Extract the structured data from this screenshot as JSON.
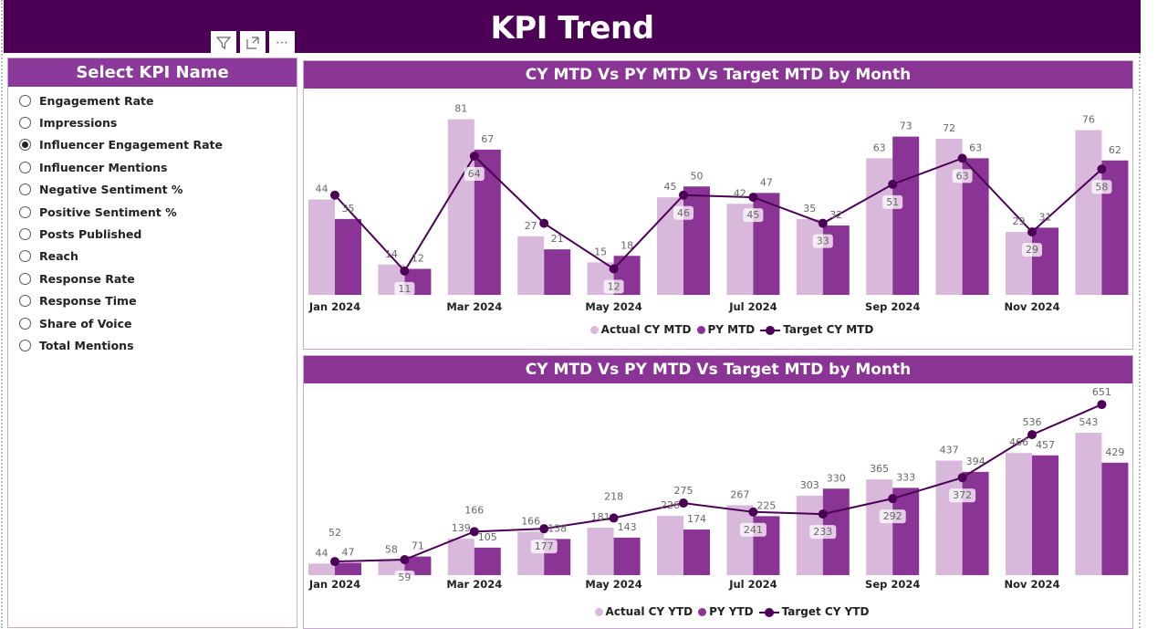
{
  "header": {
    "title": "KPI Trend"
  },
  "visual_icons": [
    "filter-icon",
    "focus-mode-icon",
    "more-options-icon"
  ],
  "slicer": {
    "title": "Select KPI Name",
    "selected": "Influencer Engagement Rate",
    "items": [
      "Engagement Rate",
      "Impressions",
      "Influencer Engagement Rate",
      "Influencer Mentions",
      "Negative Sentiment %",
      "Positive Sentiment %",
      "Posts Published",
      "Reach",
      "Response Rate",
      "Response Time",
      "Share of Voice",
      "Total Mentions"
    ]
  },
  "colors": {
    "header": "#4b0055",
    "title_band": "#8a3595",
    "actual": "#d8b9dc",
    "py": "#8a3595",
    "target": "#4b0055"
  },
  "chart_data": [
    {
      "type": "bar+line",
      "title": "CY MTD Vs PY MTD Vs Target MTD by Month",
      "x_tick_labels": [
        "Jan 2024",
        "",
        "Mar 2024",
        "",
        "May 2024",
        "",
        "Jul 2024",
        "",
        "Sep 2024",
        "",
        "Nov 2024",
        ""
      ],
      "ylim": [
        0,
        88
      ],
      "legend_position": "bottom",
      "series": [
        {
          "name": "Actual CY MTD",
          "kind": "bar",
          "values": [
            44,
            14,
            81,
            27,
            15,
            45,
            42,
            35,
            63,
            72,
            29,
            76
          ]
        },
        {
          "name": "PY MTD",
          "kind": "bar",
          "values": [
            35,
            12,
            67,
            21,
            18,
            50,
            47,
            32,
            73,
            63,
            31,
            62
          ]
        },
        {
          "name": "Target CY MTD",
          "kind": "line",
          "values": [
            46,
            11,
            64,
            33,
            12,
            46,
            45,
            33,
            51,
            63,
            29,
            58
          ],
          "label_shown": [
            false,
            true,
            true,
            false,
            true,
            true,
            true,
            true,
            true,
            true,
            true,
            true
          ]
        }
      ]
    },
    {
      "type": "bar+line",
      "title": "CY MTD Vs PY MTD Vs Target MTD by Month",
      "x_tick_labels": [
        "Jan 2024",
        "",
        "Mar 2024",
        "",
        "May 2024",
        "",
        "Jul 2024",
        "",
        "Sep 2024",
        "",
        "Nov 2024",
        ""
      ],
      "ylim": [
        0,
        714
      ],
      "legend_position": "bottom",
      "series": [
        {
          "name": "Actual CY YTD",
          "kind": "bar",
          "values": [
            44,
            58,
            139,
            166,
            181,
            226,
            267,
            303,
            365,
            437,
            466,
            543
          ]
        },
        {
          "name": "PY YTD",
          "kind": "bar",
          "values": [
            47,
            71,
            105,
            138,
            143,
            174,
            225,
            330,
            333,
            394,
            457,
            429
          ]
        },
        {
          "name": "Target CY YTD",
          "kind": "line",
          "values": [
            52,
            59,
            166,
            177,
            218,
            275,
            241,
            233,
            292,
            372,
            536,
            651
          ],
          "label_shown": [
            true,
            true,
            true,
            true,
            true,
            true,
            true,
            true,
            true,
            true,
            true,
            true
          ]
        }
      ]
    }
  ]
}
